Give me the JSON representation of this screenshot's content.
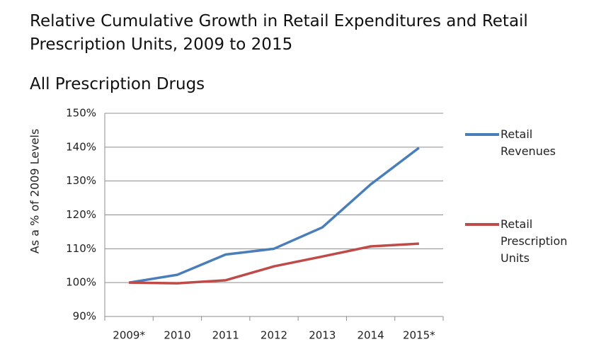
{
  "chart_data": {
    "type": "line",
    "title": "Relative Cumulative Growth in Retail Expenditures and Retail Prescription Units, 2009 to 2015",
    "subtitle": "All Prescription Drugs",
    "y_label": "As a % of 2009 Levels",
    "categories": [
      "2009*",
      "2010",
      "2011",
      "2012",
      "2013",
      "2014",
      "2015*"
    ],
    "series": [
      {
        "name": "Retail Revenues",
        "color": "#4a7ebb",
        "values": [
          100,
          102.3,
          108.3,
          110,
          116.3,
          129,
          139.8
        ]
      },
      {
        "name": "Retail Prescription Units",
        "color": "#be4b48",
        "values": [
          100,
          99.8,
          100.7,
          104.8,
          107.7,
          110.7,
          111.5
        ]
      }
    ],
    "ylim": [
      90,
      150
    ],
    "yticks": [
      {
        "value": 90,
        "label": "90%"
      },
      {
        "value": 100,
        "label": "100%"
      },
      {
        "value": 110,
        "label": "110%"
      },
      {
        "value": 120,
        "label": "120%"
      },
      {
        "value": 130,
        "label": "130%"
      },
      {
        "value": 140,
        "label": "140%"
      },
      {
        "value": 150,
        "label": "150%"
      }
    ],
    "grid": true
  }
}
